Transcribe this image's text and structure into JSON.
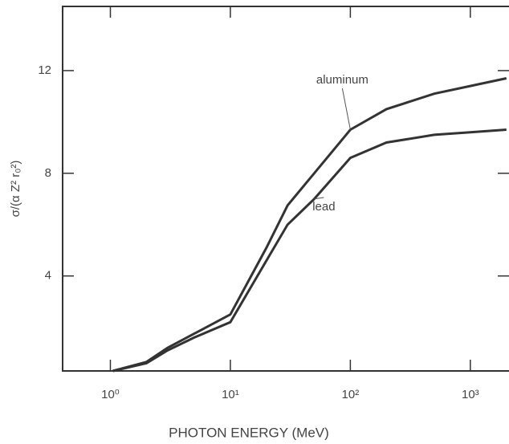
{
  "chart_data": {
    "type": "line",
    "x_label": "PHOTON ENERGY (MeV)",
    "y_label": "σ/(α Z² r₀²)",
    "x": [
      1.05,
      2,
      3,
      5,
      10,
      20,
      30,
      50,
      100,
      200,
      500,
      1000,
      2000
    ],
    "series": [
      {
        "name": "aluminum",
        "color": "#333333",
        "values": [
          0.3,
          0.65,
          1.2,
          1.75,
          2.5,
          5.1,
          6.75,
          8.0,
          9.7,
          10.5,
          11.1,
          11.4,
          11.7
        ]
      },
      {
        "name": "lead",
        "color": "#333333",
        "values": [
          0.3,
          0.6,
          1.1,
          1.6,
          2.2,
          4.6,
          6.0,
          7.0,
          8.6,
          9.2,
          9.5,
          9.6,
          9.7
        ]
      }
    ],
    "xlog": true,
    "xlim": [
      0.4,
      2100
    ],
    "ylim": [
      0.3,
      14.5
    ],
    "xticks": [
      {
        "value": 1,
        "label": "10⁰"
      },
      {
        "value": 10,
        "label": "10¹"
      },
      {
        "value": 100,
        "label": "10²"
      },
      {
        "value": 1000,
        "label": "10³"
      }
    ],
    "yticks": [
      4,
      8,
      12
    ]
  }
}
